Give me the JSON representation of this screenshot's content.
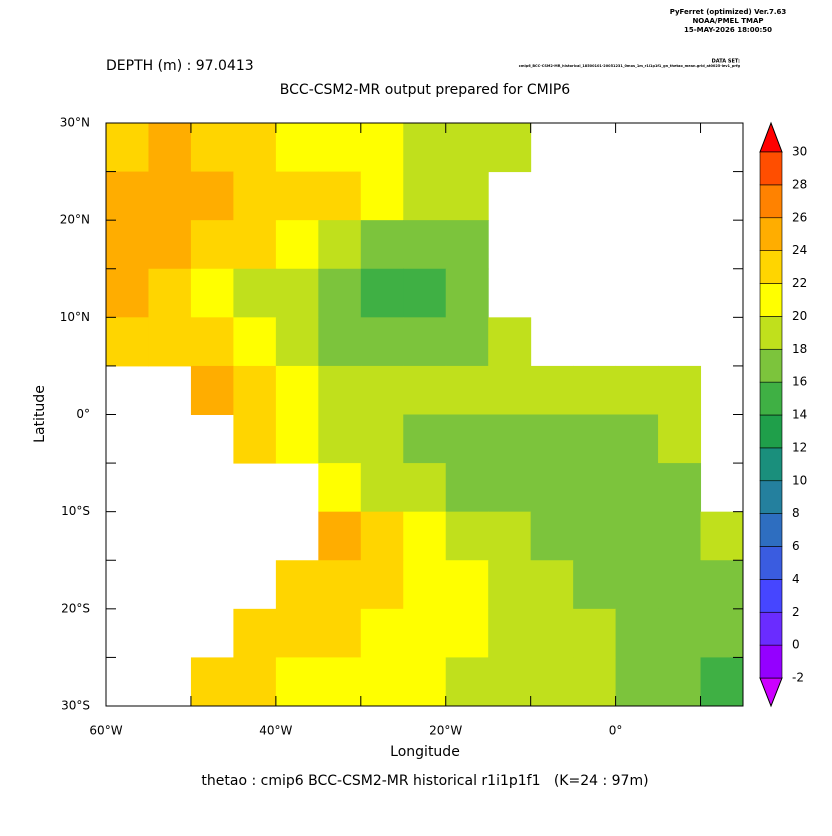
{
  "chart_data": {
    "type": "heatmap",
    "header": [
      "PyFerret (optimized) Ver.7.63",
      "NOAA/PMEL TMAP",
      "15-MAY-2026 18:00:50"
    ],
    "dataset_label": "DATA SET:",
    "dataset": "cmip6_BCC-CSM2-MR_historical_18500101-20051231_0mos_1m_r1i1p1f1_gn_thetao_mean.grid_at0025-lev1_prfg",
    "subtitle": "DEPTH (m) : 97.0413",
    "title": "BCC-CSM2-MR output prepared for CMIP6",
    "x_label": "Longitude",
    "y_label": "Latitude",
    "footer": "thetao : cmip6 BCC-CSM2-MR historical r1i1p1f1   (K=24 : 97m)",
    "xlim": [
      -60,
      15
    ],
    "ylim": [
      -30,
      30
    ],
    "xticks": [
      {
        "value": -60,
        "label": "60°W"
      },
      {
        "value": -40,
        "label": "40°W"
      },
      {
        "value": -20,
        "label": "20°W"
      },
      {
        "value": 0,
        "label": "0°"
      }
    ],
    "xminor_ticks": [
      -50,
      -30,
      -10,
      10
    ],
    "yticks": [
      {
        "value": 30,
        "label": "30°N"
      },
      {
        "value": 20,
        "label": "20°N"
      },
      {
        "value": 10,
        "label": "10°N"
      },
      {
        "value": 0,
        "label": "0°"
      },
      {
        "value": -10,
        "label": "10°S"
      },
      {
        "value": -20,
        "label": "20°S"
      },
      {
        "value": -30,
        "label": "30°S"
      }
    ],
    "yminor_ticks": [
      25,
      15,
      5,
      -5,
      -15,
      -25
    ],
    "x": [
      -57.5,
      -52.5,
      -47.5,
      -42.5,
      -37.5,
      -32.5,
      -27.5,
      -22.5,
      -17.5,
      -12.5,
      -7.5,
      -2.5,
      2.5,
      7.5,
      12.5
    ],
    "y": [
      27.5,
      22.5,
      17.5,
      12.5,
      7.5,
      2.5,
      -2.5,
      -7.5,
      -12.5,
      -17.5,
      -22.5,
      -27.5
    ],
    "values": [
      [
        22,
        24,
        23,
        22,
        21,
        21,
        20,
        19,
        19,
        18,
        null,
        null,
        null,
        null,
        null
      ],
      [
        25,
        25,
        24,
        23,
        22,
        22,
        21,
        19,
        18,
        null,
        null,
        null,
        null,
        null,
        null
      ],
      [
        24,
        24,
        23,
        22,
        21,
        19,
        17,
        16,
        16,
        null,
        null,
        null,
        null,
        null,
        null
      ],
      [
        24,
        23,
        21,
        19,
        18,
        16,
        15,
        15,
        16,
        null,
        null,
        null,
        null,
        null,
        null
      ],
      [
        22,
        22,
        22,
        20,
        18,
        17,
        17,
        17,
        17,
        18,
        null,
        null,
        null,
        null,
        null
      ],
      [
        null,
        null,
        24,
        22,
        20,
        19,
        18,
        18,
        18,
        18,
        18,
        18,
        18,
        18,
        null
      ],
      [
        null,
        null,
        null,
        22,
        21,
        19,
        18,
        17,
        17,
        17,
        16,
        17,
        17,
        18,
        null
      ],
      [
        null,
        null,
        null,
        null,
        null,
        21,
        19,
        18,
        17,
        16,
        16,
        16,
        17,
        17,
        null
      ],
      [
        null,
        null,
        null,
        null,
        null,
        24,
        22,
        20,
        19,
        18,
        17,
        16,
        16,
        17,
        18
      ],
      [
        null,
        null,
        null,
        null,
        22,
        23,
        22,
        21,
        20,
        19,
        18,
        17,
        16,
        16,
        17
      ],
      [
        null,
        null,
        null,
        23,
        23,
        22,
        21,
        21,
        20,
        19,
        19,
        18,
        17,
        17,
        16
      ],
      [
        null,
        null,
        22,
        22,
        21,
        21,
        20,
        20,
        19,
        19,
        18,
        18,
        17,
        17,
        15
      ]
    ],
    "colorbar": {
      "levels": [
        -2,
        0,
        2,
        4,
        6,
        8,
        10,
        12,
        14,
        16,
        18,
        20,
        22,
        24,
        26,
        28,
        30
      ],
      "colors": [
        "#cc00ff",
        "#9400ff",
        "#6a2cff",
        "#4646ff",
        "#3a5ce0",
        "#2e6ec0",
        "#24809e",
        "#1a8f7c",
        "#1f9f4a",
        "#3fb044",
        "#7cc43c",
        "#c0e01c",
        "#ffff00",
        "#ffd500",
        "#ffad00",
        "#ff8200",
        "#ff4e00",
        "#ff0000"
      ]
    }
  }
}
